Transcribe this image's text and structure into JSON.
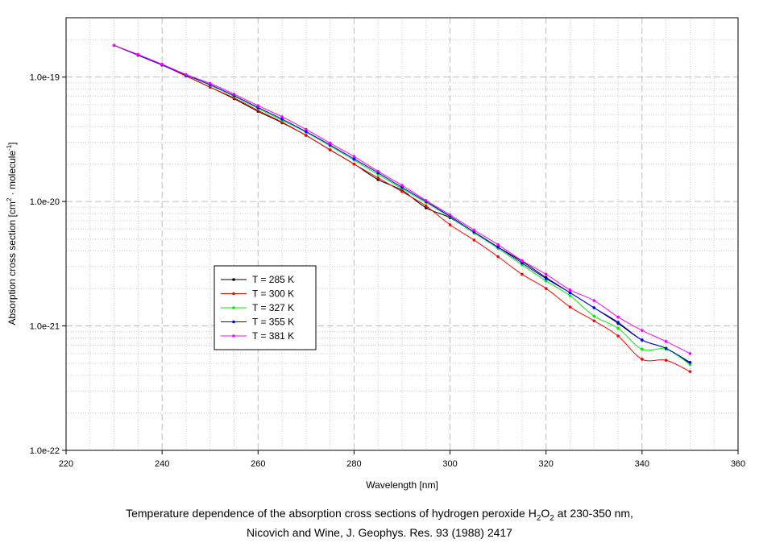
{
  "chart_data": {
    "type": "line",
    "xlabel": "Wavelength [nm]",
    "ylabel_parts": {
      "prefix": "Absorption cross section [cm",
      "exp1": "2",
      "middle": " · molecule",
      "exp2": "-1",
      "suffix": "]"
    },
    "xlim": [
      220,
      360
    ],
    "ylim": [
      1e-22,
      3e-19
    ],
    "y_scale": "log",
    "x_ticks": [
      "220",
      "240",
      "260",
      "280",
      "300",
      "320",
      "340",
      "360"
    ],
    "x_tick_values": [
      220,
      240,
      260,
      280,
      300,
      320,
      340,
      360
    ],
    "y_ticks": [
      "1.0e-22",
      "1.0e-21",
      "1.0e-20",
      "1.0e-19"
    ],
    "y_tick_values": [
      1e-22,
      1e-21,
      1e-20,
      1e-19
    ],
    "grid": true,
    "legend_position": "center-left",
    "x": [
      230,
      235,
      240,
      245,
      250,
      255,
      260,
      265,
      270,
      275,
      280,
      285,
      290,
      295,
      300,
      305,
      310,
      315,
      320,
      325,
      330,
      335,
      340,
      345,
      350
    ],
    "series": [
      {
        "name": "T = 285 K",
        "color": "#000000",
        "values": [
          1.8e-19,
          1.5e-19,
          1.25e-19,
          1.02e-19,
          8.3e-20,
          6.7e-20,
          5.3e-20,
          4.3e-20,
          3.4e-20,
          2.6e-20,
          2e-20,
          1.5e-20,
          1.23e-20,
          8.9e-21,
          7.4e-21,
          5.6e-21,
          4.3e-21,
          3.3e-21,
          2.45e-21,
          1.85e-21,
          1.4e-21,
          1.05e-21,
          7.7e-22,
          6.6e-22,
          5e-22
        ]
      },
      {
        "name": "T = 300 K",
        "color": "#ff0000",
        "values": [
          1.8e-19,
          1.5e-19,
          1.25e-19,
          1.02e-19,
          8.3e-20,
          6.8e-20,
          5.4e-20,
          4.35e-20,
          3.4e-20,
          2.6e-20,
          2e-20,
          1.55e-20,
          1.2e-20,
          9.2e-21,
          6.5e-21,
          4.9e-21,
          3.6e-21,
          2.6e-21,
          2e-21,
          1.42e-21,
          1.1e-21,
          8.3e-22,
          5.4e-22,
          5.3e-22,
          4.3e-22
        ]
      },
      {
        "name": "T = 327 K",
        "color": "#00ee00",
        "values": [
          1.8e-19,
          1.5e-19,
          1.25e-19,
          1.04e-19,
          8.6e-20,
          7e-20,
          5.6e-20,
          4.5e-20,
          3.6e-20,
          2.8e-20,
          2.15e-20,
          1.65e-20,
          1.27e-20,
          9.8e-21,
          7.5e-21,
          5.6e-21,
          4.2e-21,
          3.1e-21,
          2.3e-21,
          1.75e-21,
          1.2e-21,
          9.6e-22,
          6.5e-22,
          6.5e-22,
          4.9e-22
        ]
      },
      {
        "name": "T = 355 K",
        "color": "#0000ff",
        "values": [
          1.8e-19,
          1.5e-19,
          1.25e-19,
          1.04e-19,
          8.7e-20,
          7.1e-20,
          5.7e-20,
          4.6e-20,
          3.65e-20,
          2.85e-20,
          2.2e-20,
          1.7e-20,
          1.3e-20,
          1e-20,
          7.6e-21,
          5.7e-21,
          4.3e-21,
          3.2e-21,
          2.4e-21,
          1.85e-21,
          1.4e-21,
          1.07e-21,
          7.7e-22,
          6.6e-22,
          5.1e-22
        ]
      },
      {
        "name": "T = 381 K",
        "color": "#ff00ff",
        "values": [
          1.8e-19,
          1.52e-19,
          1.27e-19,
          1.05e-19,
          8.9e-20,
          7.3e-20,
          5.9e-20,
          4.8e-20,
          3.8e-20,
          2.95e-20,
          2.3e-20,
          1.75e-20,
          1.35e-20,
          1.02e-20,
          7.8e-21,
          5.9e-21,
          4.5e-21,
          3.35e-21,
          2.6e-21,
          1.95e-21,
          1.6e-21,
          1.18e-21,
          9.2e-22,
          7.5e-22,
          6e-22
        ]
      }
    ]
  },
  "caption": {
    "line1_prefix": "Temperature dependence of the absorption cross sections of hydrogen peroxide H",
    "line1_sub1": "2",
    "line1_mid": "O",
    "line1_sub2": "2",
    "line1_suffix": " at 230-350 nm,",
    "line2": "Nicovich and Wine, J. Geophys. Res. 93 (1988) 2417"
  }
}
